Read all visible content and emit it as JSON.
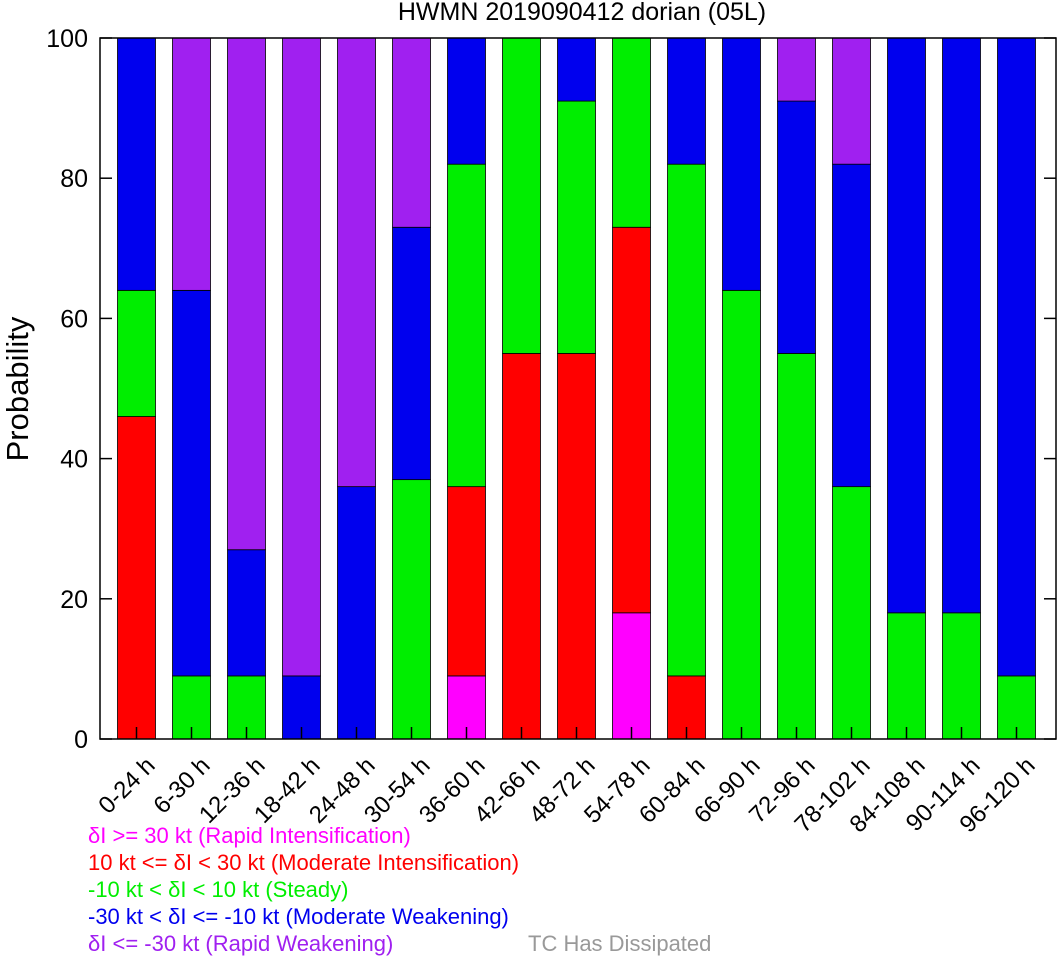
{
  "chart_data": {
    "type": "bar",
    "stacked": true,
    "title": "HWMN 2019090412 dorian (05L)",
    "xlabel": "",
    "ylabel": "Probability",
    "ylim": [
      0,
      100
    ],
    "yticks": [
      "0",
      "20",
      "40",
      "60",
      "80",
      "100"
    ],
    "categories": [
      "0-24 h",
      "6-30 h",
      "12-36 h",
      "18-42 h",
      "24-48 h",
      "30-54 h",
      "36-60 h",
      "42-66 h",
      "48-72 h",
      "54-78 h",
      "60-84 h",
      "66-90 h",
      "72-96 h",
      "78-102 h",
      "84-108 h",
      "90-114 h",
      "96-120 h"
    ],
    "series": [
      {
        "key": "ri",
        "color": "#ff00ff",
        "values": [
          0,
          0,
          0,
          0,
          0,
          0,
          9,
          0,
          0,
          18,
          0,
          0,
          0,
          0,
          0,
          0,
          0
        ]
      },
      {
        "key": "mi",
        "color": "#ff0000",
        "values": [
          46,
          0,
          0,
          0,
          0,
          0,
          27,
          55,
          55,
          55,
          9,
          0,
          0,
          0,
          0,
          0,
          0
        ]
      },
      {
        "key": "st",
        "color": "#00ee00",
        "values": [
          18,
          9,
          9,
          0,
          0,
          37,
          46,
          45,
          36,
          27,
          73,
          64,
          55,
          36,
          18,
          18,
          9
        ]
      },
      {
        "key": "mw",
        "color": "#0000ee",
        "values": [
          36,
          55,
          18,
          9,
          36,
          36,
          18,
          0,
          9,
          0,
          18,
          36,
          36,
          46,
          82,
          82,
          91
        ]
      },
      {
        "key": "rw",
        "color": "#a020f0",
        "values": [
          0,
          36,
          73,
          91,
          64,
          27,
          0,
          0,
          0,
          0,
          0,
          0,
          9,
          18,
          0,
          0,
          0
        ]
      }
    ],
    "legend": {
      "placement": "bottom-left",
      "entries": [
        {
          "text": "δI >= 30 kt (Rapid Intensification)",
          "color": "#ff00ff"
        },
        {
          "text": "10 kt <= δI < 30 kt (Moderate Intensification)",
          "color": "#ff0000"
        },
        {
          "text": "-10 kt < δI < 10 kt (Steady)",
          "color": "#00ee00"
        },
        {
          "text": "-30 kt < δI <= -10 kt (Moderate Weakening)",
          "color": "#0000ee"
        },
        {
          "text": "δI <= -30 kt (Rapid Weakening)",
          "color": "#a020f0"
        },
        {
          "text": "TC Has Dissipated",
          "color": "#999999"
        }
      ]
    },
    "grid": false
  }
}
